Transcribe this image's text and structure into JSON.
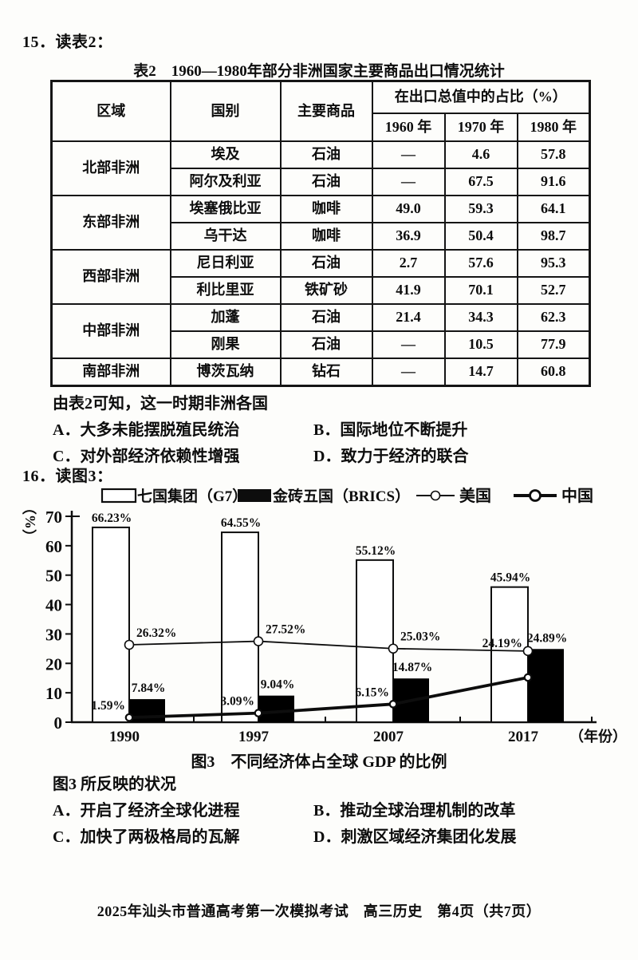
{
  "q15": {
    "stem": "15．读表2：",
    "question": "由表2可知，这一时期非洲各国",
    "options": [
      "A．大多未能摆脱殖民统治",
      "B．国际地位不断提升",
      "C．对外部经济依赖性增强",
      "D．致力于经济的联合"
    ]
  },
  "table2": {
    "title": "表2　1960—1980年部分非洲国家主要商品出口情况统计",
    "headers": {
      "region": "区域",
      "country": "国别",
      "commodity": "主要商品",
      "share_group": "在出口总值中的占比（%）",
      "years": [
        "1960 年",
        "1970 年",
        "1980 年"
      ]
    },
    "rows": [
      {
        "region": "北部非洲",
        "country": "埃及",
        "commodity": "石油",
        "y1960": "—",
        "y1970": "4.6",
        "y1980": "57.8"
      },
      {
        "country": "阿尔及利亚",
        "commodity": "石油",
        "y1960": "—",
        "y1970": "67.5",
        "y1980": "91.6"
      },
      {
        "region": "东部非洲",
        "country": "埃塞俄比亚",
        "commodity": "咖啡",
        "y1960": "49.0",
        "y1970": "59.3",
        "y1980": "64.1"
      },
      {
        "country": "乌干达",
        "commodity": "咖啡",
        "y1960": "36.9",
        "y1970": "50.4",
        "y1980": "98.7"
      },
      {
        "region": "西部非洲",
        "country": "尼日利亚",
        "commodity": "石油",
        "y1960": "2.7",
        "y1970": "57.6",
        "y1980": "95.3"
      },
      {
        "country": "利比里亚",
        "commodity": "铁矿砂",
        "y1960": "41.9",
        "y1970": "70.1",
        "y1980": "52.7"
      },
      {
        "region": "中部非洲",
        "country": "加蓬",
        "commodity": "石油",
        "y1960": "21.4",
        "y1970": "34.3",
        "y1980": "62.3"
      },
      {
        "country": "刚果",
        "commodity": "石油",
        "y1960": "—",
        "y1970": "10.5",
        "y1980": "77.9"
      },
      {
        "region": "南部非洲",
        "country": "博茨瓦纳",
        "commodity": "钻石",
        "y1960": "—",
        "y1970": "14.7",
        "y1980": "60.8"
      }
    ]
  },
  "q16": {
    "stem": "16．读图3：",
    "caption": "图3　不同经济体占全球 GDP 的比例",
    "question": "图3 所反映的状况",
    "options": [
      "A．开启了经济全球化进程",
      "B．推动全球治理机制的改革",
      "C．加快了两极格局的瓦解",
      "D．刺激区域经济集团化发展"
    ]
  },
  "chart_data": {
    "type": "bar",
    "categories": [
      "1990",
      "1997",
      "2007",
      "2017"
    ],
    "series": [
      {
        "name": "七国集团（G7）",
        "kind": "bar",
        "fill": "#ffffff",
        "values": [
          66.23,
          64.55,
          55.12,
          45.94
        ],
        "labels": [
          "66.23%",
          "64.55%",
          "55.12%",
          "45.94%"
        ]
      },
      {
        "name": "金砖五国（BRICS）",
        "kind": "bar",
        "fill": "#000000",
        "values": [
          7.84,
          9.04,
          14.87,
          24.89
        ],
        "labels": [
          "7.84%",
          "9.04%",
          "14.87%",
          "24.89%"
        ]
      },
      {
        "name": "美国",
        "kind": "line",
        "values": [
          26.32,
          27.52,
          25.03,
          24.19
        ],
        "labels": [
          "26.32%",
          "27.52%",
          "25.03%",
          "24.19%"
        ]
      },
      {
        "name": "中国",
        "kind": "line",
        "values": [
          1.59,
          3.09,
          6.15,
          15.2
        ],
        "labels": [
          "1.59%",
          "3.09%",
          "6.15%",
          ""
        ]
      }
    ],
    "title": "图3　不同经济体占全球 GDP 的比例",
    "xlabel": "（年份）",
    "ylabel": "（%）",
    "ylim": [
      0,
      70
    ],
    "ytick_step": 10,
    "grid": false,
    "legend_position": "top",
    "colors": {
      "ink": "#0d0d0d",
      "paper": "#fdfdfb"
    }
  },
  "footer": "2025年汕头市普通高考第一次模拟考试　高三历史　第4页（共7页）"
}
